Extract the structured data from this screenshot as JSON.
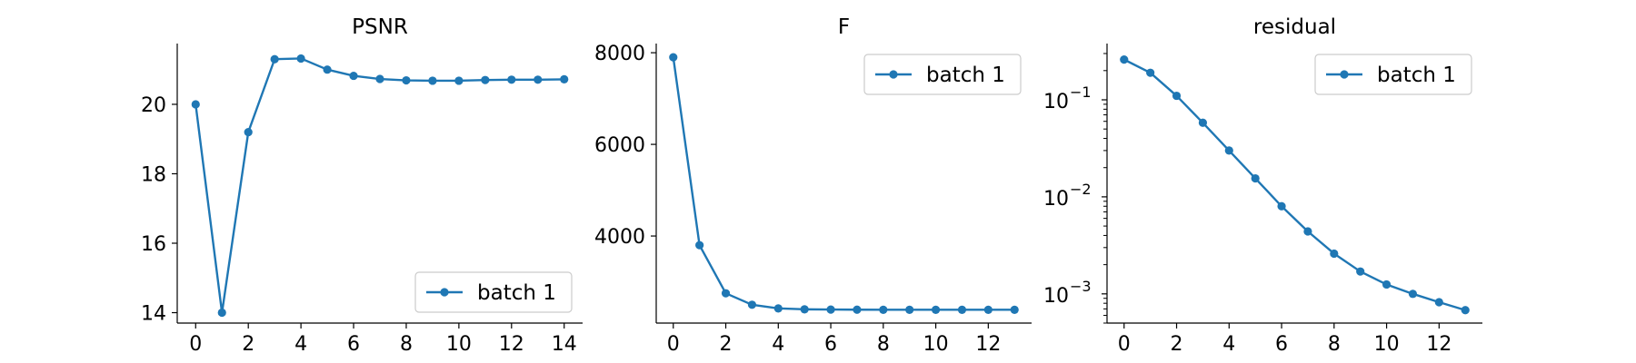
{
  "chart_data": [
    {
      "type": "line",
      "title": "PSNR",
      "xlabel": "",
      "ylabel": "",
      "xlim": [
        -0.7,
        14.7
      ],
      "ylim": [
        13.7,
        21.75
      ],
      "xticks": [
        0,
        2,
        4,
        6,
        8,
        10,
        12,
        14
      ],
      "yticks": [
        14,
        16,
        18,
        20
      ],
      "yscale": "linear",
      "grid": false,
      "legend": "lower right",
      "series": [
        {
          "name": "batch 1",
          "color": "#1f77b4",
          "x": [
            0,
            1,
            2,
            3,
            4,
            5,
            6,
            7,
            8,
            9,
            10,
            11,
            12,
            13,
            14
          ],
          "y": [
            20.0,
            14.0,
            19.2,
            21.3,
            21.32,
            21.0,
            20.82,
            20.73,
            20.69,
            20.68,
            20.68,
            20.7,
            20.71,
            20.71,
            20.72
          ]
        }
      ]
    },
    {
      "type": "line",
      "title": "F",
      "xlabel": "",
      "ylabel": "",
      "xlim": [
        -0.65,
        13.65
      ],
      "ylim": [
        2100,
        8200
      ],
      "xticks": [
        0,
        2,
        4,
        6,
        8,
        10,
        12
      ],
      "yticks": [
        4000,
        6000,
        8000
      ],
      "yscale": "linear",
      "grid": false,
      "legend": "upper right",
      "series": [
        {
          "name": "batch 1",
          "color": "#1f77b4",
          "x": [
            0,
            1,
            2,
            3,
            4,
            5,
            6,
            7,
            8,
            9,
            10,
            11,
            12,
            13
          ],
          "y": [
            7900,
            3800,
            2750,
            2500,
            2420,
            2400,
            2395,
            2392,
            2390,
            2390,
            2390,
            2390,
            2390,
            2390
          ]
        }
      ]
    },
    {
      "type": "line",
      "title": "residual",
      "xlabel": "",
      "ylabel": "",
      "xlim": [
        -0.65,
        13.65
      ],
      "ylim": [
        0.0005,
        0.38
      ],
      "xticks": [
        0,
        2,
        4,
        6,
        8,
        10,
        12
      ],
      "yticks": [
        0.001,
        0.01,
        0.1
      ],
      "ytick_base": "10",
      "ytick_exponents": [
        "−3",
        "−2",
        "−1"
      ],
      "yscale": "log",
      "grid": false,
      "legend": "upper right",
      "series": [
        {
          "name": "batch 1",
          "color": "#1f77b4",
          "x": [
            0,
            1,
            2,
            3,
            4,
            5,
            6,
            7,
            8,
            9,
            10,
            11,
            12,
            13
          ],
          "y": [
            0.26,
            0.19,
            0.11,
            0.058,
            0.03,
            0.0155,
            0.008,
            0.0044,
            0.0026,
            0.0017,
            0.00125,
            0.001,
            0.00082,
            0.00068
          ]
        }
      ]
    }
  ]
}
